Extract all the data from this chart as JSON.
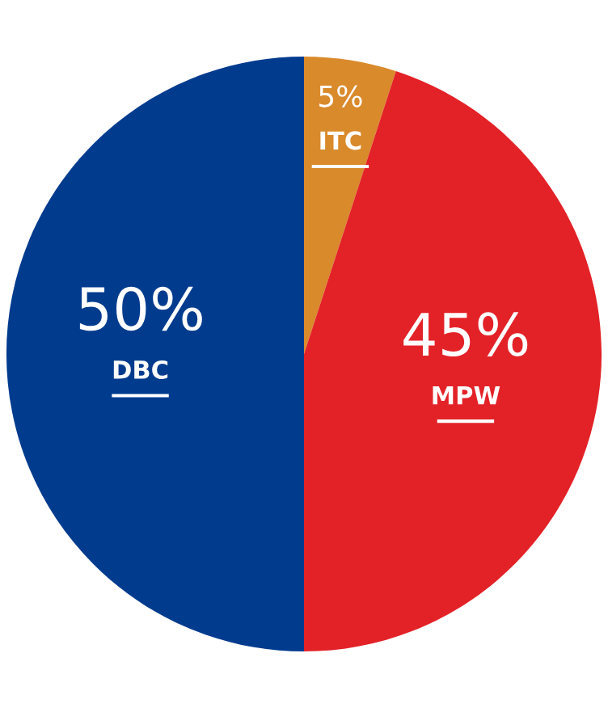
{
  "chart_data": {
    "type": "pie",
    "categories": [
      "ITC",
      "MPW",
      "DBC"
    ],
    "values": [
      5,
      45,
      50
    ],
    "colors": [
      "#d98a2b",
      "#e32228",
      "#003b8e"
    ],
    "value_labels": [
      "5%",
      "45%",
      "50%"
    ]
  }
}
